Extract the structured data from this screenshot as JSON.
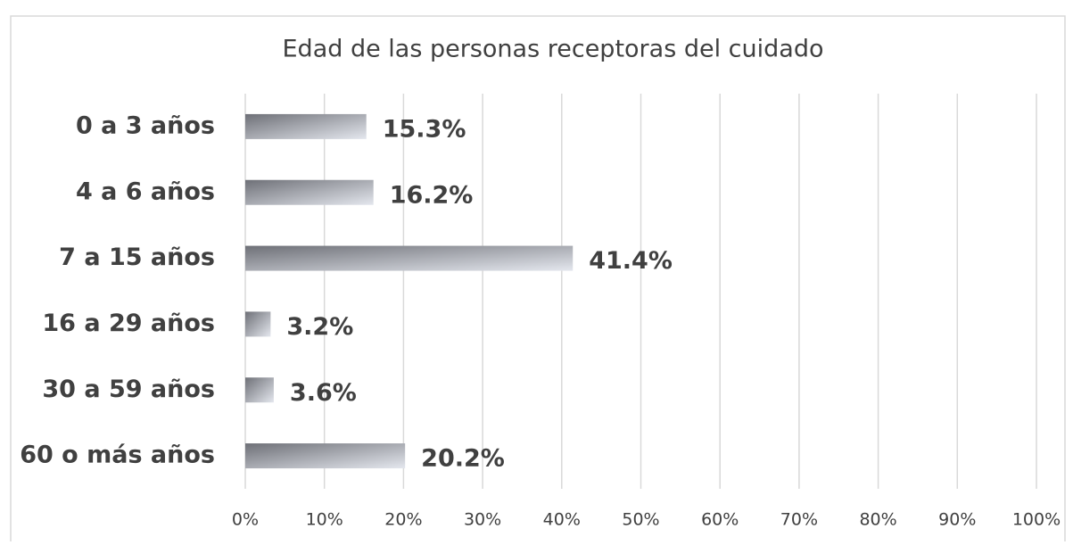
{
  "chart_data": {
    "type": "hbar",
    "title": "Edad de las personas receptoras del cuidado",
    "categories": [
      "0 a 3 años",
      "4 a 6 años",
      "7 a 15 años",
      "16 a 29 años",
      "30 a 59 años",
      "60 o más años"
    ],
    "values": [
      15.3,
      16.2,
      41.4,
      3.2,
      3.6,
      20.2
    ],
    "value_labels": [
      "15.3%",
      "16.2%",
      "41.4%",
      "3.2%",
      "3.6%",
      "20.2%"
    ],
    "color": [
      "#6e7077",
      "#e4e7ee"
    ],
    "xlim": [
      0,
      100
    ],
    "xticks": [
      {
        "value": 0,
        "label": "0%"
      },
      {
        "value": 10,
        "label": "10%"
      },
      {
        "value": 20,
        "label": "20%"
      },
      {
        "value": 30,
        "label": "30%"
      },
      {
        "value": 40,
        "label": "40%"
      },
      {
        "value": 50,
        "label": "50%"
      },
      {
        "value": 60,
        "label": "60%"
      },
      {
        "value": 70,
        "label": "70%"
      },
      {
        "value": 80,
        "label": "80%"
      },
      {
        "value": 90,
        "label": "90%"
      },
      {
        "value": 100,
        "label": "100%"
      }
    ],
    "grid": true
  }
}
